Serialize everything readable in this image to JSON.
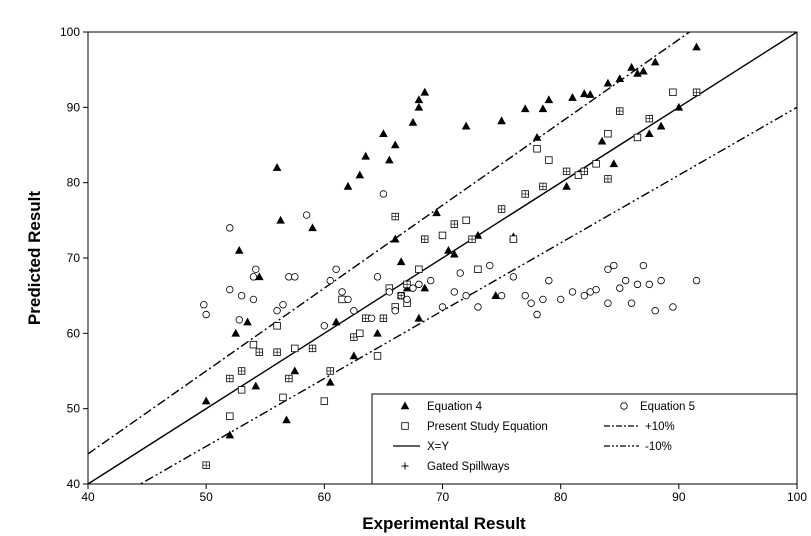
{
  "chart_data": {
    "type": "scatter",
    "xlabel": "Experimental Result",
    "ylabel": "Predicted Result",
    "xlim": [
      40,
      100
    ],
    "ylim": [
      40,
      100
    ],
    "xticks": [
      "40",
      "50",
      "60",
      "70",
      "80",
      "90",
      "100"
    ],
    "yticks": [
      "40",
      "50",
      "60",
      "70",
      "80",
      "90",
      "100"
    ],
    "grid": false,
    "legend_position": "bottom-right",
    "series": [
      {
        "name": "Equation 4",
        "marker": "triangle",
        "points": [
          [
            50,
            51
          ],
          [
            52,
            46.5
          ],
          [
            52.5,
            60
          ],
          [
            52.8,
            71
          ],
          [
            53.5,
            61.5
          ],
          [
            54.2,
            53
          ],
          [
            54.5,
            67.5
          ],
          [
            56,
            82
          ],
          [
            56.3,
            75
          ],
          [
            56.8,
            48.5
          ],
          [
            57.5,
            55
          ],
          [
            59,
            74
          ],
          [
            60.5,
            53.5
          ],
          [
            61,
            61.5
          ],
          [
            62,
            79.5
          ],
          [
            62.5,
            57
          ],
          [
            63,
            81
          ],
          [
            63.5,
            83.5
          ],
          [
            64.5,
            60
          ],
          [
            65,
            86.5
          ],
          [
            65.5,
            83
          ],
          [
            66,
            85
          ],
          [
            66,
            72.5
          ],
          [
            66.5,
            69.5
          ],
          [
            67,
            66
          ],
          [
            67.5,
            88
          ],
          [
            68,
            90
          ],
          [
            68,
            91
          ],
          [
            68.5,
            92
          ],
          [
            68,
            62
          ],
          [
            68.5,
            66
          ],
          [
            69.5,
            76
          ],
          [
            70.5,
            71
          ],
          [
            71,
            70.5
          ],
          [
            72,
            87.5
          ],
          [
            73,
            73
          ],
          [
            74.5,
            65
          ],
          [
            75,
            88.2
          ],
          [
            76,
            72.8
          ],
          [
            77,
            89.8
          ],
          [
            78,
            86
          ],
          [
            78.5,
            89.8
          ],
          [
            79,
            91
          ],
          [
            80.5,
            79.5
          ],
          [
            81,
            91.3
          ],
          [
            82,
            91.8
          ],
          [
            82.5,
            91.7
          ],
          [
            83.5,
            85.5
          ],
          [
            84,
            93.2
          ],
          [
            84.5,
            82.5
          ],
          [
            85,
            93.8
          ],
          [
            86,
            95.3
          ],
          [
            86.5,
            94.5
          ],
          [
            87,
            94.8
          ],
          [
            87.5,
            86.5
          ],
          [
            88,
            96
          ],
          [
            88.5,
            87.5
          ],
          [
            90,
            90
          ],
          [
            91.5,
            98
          ]
        ]
      },
      {
        "name": "Present Study Equation",
        "marker": "square",
        "points": [
          [
            50,
            42.5
          ],
          [
            52,
            49
          ],
          [
            52,
            54
          ],
          [
            53,
            52.5
          ],
          [
            53,
            55
          ],
          [
            54,
            58.5
          ],
          [
            54.5,
            57.5
          ],
          [
            56,
            61
          ],
          [
            56,
            57.5
          ],
          [
            56.5,
            51.5
          ],
          [
            57,
            54
          ],
          [
            57.5,
            58
          ],
          [
            59,
            58
          ],
          [
            60,
            51
          ],
          [
            60.5,
            55
          ],
          [
            61.5,
            64.5
          ],
          [
            62.5,
            59.5
          ],
          [
            63,
            60
          ],
          [
            63.5,
            62
          ],
          [
            64.5,
            57
          ],
          [
            65,
            62
          ],
          [
            65.5,
            66
          ],
          [
            66,
            75.5
          ],
          [
            66,
            63.5
          ],
          [
            66.5,
            65
          ],
          [
            67,
            64
          ],
          [
            67,
            66.5
          ],
          [
            68,
            68.5
          ],
          [
            68.5,
            72.5
          ],
          [
            70,
            73
          ],
          [
            71,
            74.5
          ],
          [
            72,
            75
          ],
          [
            72.5,
            72.5
          ],
          [
            73,
            68.5
          ],
          [
            75,
            76.5
          ],
          [
            76,
            72.5
          ],
          [
            77,
            78.5
          ],
          [
            78,
            84.5
          ],
          [
            78.5,
            79.5
          ],
          [
            79,
            83
          ],
          [
            80.5,
            81.5
          ],
          [
            81.5,
            81
          ],
          [
            82,
            81.5
          ],
          [
            83,
            82.5
          ],
          [
            84,
            80.5
          ],
          [
            84,
            86.5
          ],
          [
            85,
            89.5
          ],
          [
            86.5,
            86
          ],
          [
            87.5,
            88.5
          ],
          [
            89.5,
            92
          ],
          [
            91.5,
            92
          ]
        ]
      },
      {
        "name": "Equation 5",
        "marker": "circle",
        "points": [
          [
            49.8,
            63.8
          ],
          [
            50,
            62.5
          ],
          [
            52,
            74
          ],
          [
            52,
            65.8
          ],
          [
            52.8,
            61.8
          ],
          [
            53,
            65
          ],
          [
            54,
            64.5
          ],
          [
            54.2,
            68.5
          ],
          [
            54,
            67.5
          ],
          [
            56,
            63
          ],
          [
            56.5,
            63.8
          ],
          [
            57,
            67.5
          ],
          [
            57.5,
            67.5
          ],
          [
            58.5,
            75.7
          ],
          [
            60,
            61
          ],
          [
            60.5,
            67
          ],
          [
            61,
            68.5
          ],
          [
            61.5,
            65.5
          ],
          [
            62,
            64.5
          ],
          [
            62.5,
            63
          ],
          [
            64,
            62
          ],
          [
            64.5,
            67.5
          ],
          [
            65,
            78.5
          ],
          [
            65.5,
            65.5
          ],
          [
            66,
            63
          ],
          [
            66.5,
            65
          ],
          [
            67,
            64.5
          ],
          [
            67.5,
            66
          ],
          [
            68,
            66.5
          ],
          [
            69,
            67
          ],
          [
            70,
            63.5
          ],
          [
            71,
            65.5
          ],
          [
            71.5,
            68
          ],
          [
            72,
            65
          ],
          [
            73,
            63.5
          ],
          [
            74,
            69
          ],
          [
            75,
            65
          ],
          [
            76,
            67.5
          ],
          [
            77,
            65
          ],
          [
            77.5,
            64
          ],
          [
            78,
            62.5
          ],
          [
            78.5,
            64.5
          ],
          [
            79,
            67
          ],
          [
            80,
            64.5
          ],
          [
            81,
            65.5
          ],
          [
            82,
            65
          ],
          [
            82.5,
            65.5
          ],
          [
            83,
            65.8
          ],
          [
            84,
            68.5
          ],
          [
            84,
            64
          ],
          [
            84.5,
            69
          ],
          [
            85,
            66
          ],
          [
            85.5,
            67
          ],
          [
            86,
            64
          ],
          [
            86.5,
            66.5
          ],
          [
            87,
            69
          ],
          [
            87.5,
            66.5
          ],
          [
            88,
            63
          ],
          [
            88.5,
            67
          ],
          [
            89.5,
            63.5
          ],
          [
            91.5,
            67
          ]
        ]
      }
    ],
    "reference_lines": [
      {
        "name": "X=Y",
        "style": "solid",
        "slope": 1.0
      },
      {
        "name": "+10%",
        "style": "dash-dot",
        "slope": 1.1
      },
      {
        "name": "-10%",
        "style": "dash-dot-dot",
        "slope": 0.9
      }
    ],
    "legend": {
      "entries": [
        {
          "label": "Equation 4",
          "marker": "triangle"
        },
        {
          "label": "Equation 5",
          "marker": "circle"
        },
        {
          "label": "Present Study Equation",
          "marker": "square"
        },
        {
          "label": "+10%",
          "line": "dash-dot"
        },
        {
          "label": "X=Y",
          "line": "solid"
        },
        {
          "label": "-10%",
          "line": "dash-dot-dot"
        },
        {
          "label": "Gated Spillways",
          "marker": "cross"
        }
      ]
    }
  }
}
